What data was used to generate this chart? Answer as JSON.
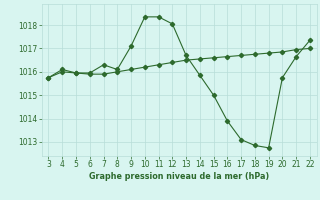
{
  "line1_x": [
    3,
    4,
    5,
    6,
    7,
    8,
    9,
    10,
    11,
    12,
    13,
    14,
    15,
    16,
    17,
    18,
    19,
    20,
    21,
    22
  ],
  "line1_y": [
    1015.75,
    1016.1,
    1015.95,
    1015.95,
    1016.3,
    1016.1,
    1017.1,
    1018.35,
    1018.35,
    1018.05,
    1016.7,
    1015.85,
    1015.0,
    1013.9,
    1013.1,
    1012.85,
    1012.75,
    1015.75,
    1016.65,
    1017.35
  ],
  "line2_x": [
    3,
    4,
    5,
    6,
    7,
    8,
    9,
    10,
    11,
    12,
    13,
    14,
    15,
    16,
    17,
    18,
    19,
    20,
    21,
    22
  ],
  "line2_y": [
    1015.75,
    1016.0,
    1015.95,
    1015.9,
    1015.9,
    1016.0,
    1016.1,
    1016.2,
    1016.3,
    1016.4,
    1016.5,
    1016.55,
    1016.6,
    1016.65,
    1016.7,
    1016.75,
    1016.8,
    1016.85,
    1016.95,
    1017.0
  ],
  "line_color": "#2d6a2d",
  "bg_color": "#d8f5f0",
  "grid_color": "#b8ddd8",
  "xlabel": "Graphe pression niveau de la mer (hPa)",
  "xticks": [
    3,
    4,
    5,
    6,
    7,
    8,
    9,
    10,
    11,
    12,
    13,
    14,
    15,
    16,
    17,
    18,
    19,
    20,
    21,
    22
  ],
  "yticks": [
    1013,
    1014,
    1015,
    1016,
    1017,
    1018
  ],
  "ylim": [
    1012.4,
    1018.9
  ],
  "xlim": [
    2.5,
    22.5
  ],
  "marker_size": 2.2,
  "linewidth": 0.8,
  "tick_fontsize": 5.5,
  "xlabel_fontsize": 5.8
}
